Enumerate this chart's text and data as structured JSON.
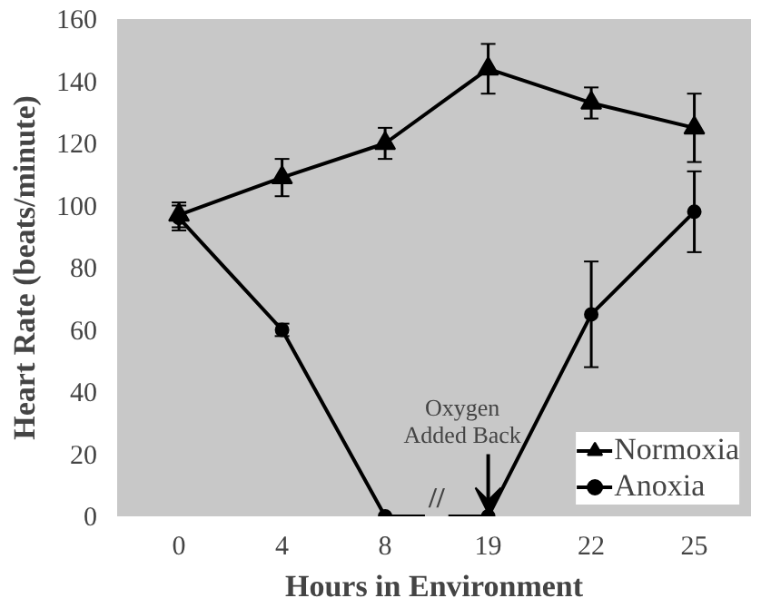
{
  "chart_data": {
    "type": "line",
    "xlabel": "Hours in Environment",
    "ylabel": "Heart Rate (beats/minute)",
    "categories": [
      "0",
      "4",
      "8",
      "19",
      "22",
      "25"
    ],
    "series": [
      {
        "name": "Normoxia",
        "color": "#000000",
        "marker": "triangle",
        "values": [
          97,
          109,
          120,
          144,
          133,
          125
        ],
        "errors": [
          4,
          6,
          5,
          8,
          5,
          11
        ]
      },
      {
        "name": "Anoxia",
        "color": "#000000",
        "marker": "circle",
        "values": [
          96,
          60,
          0,
          0,
          65,
          98
        ],
        "errors": [
          4,
          2,
          null,
          null,
          17,
          13
        ]
      }
    ],
    "ylim": [
      0,
      160
    ],
    "yticks": [
      0,
      20,
      40,
      60,
      80,
      100,
      120,
      140,
      160
    ],
    "annotations": [
      {
        "text": "Oxygen\nAdded Back",
        "x": "19",
        "y": 0
      },
      "//"
    ],
    "legend": "bottom right",
    "grid": false,
    "line_style": "solid"
  }
}
